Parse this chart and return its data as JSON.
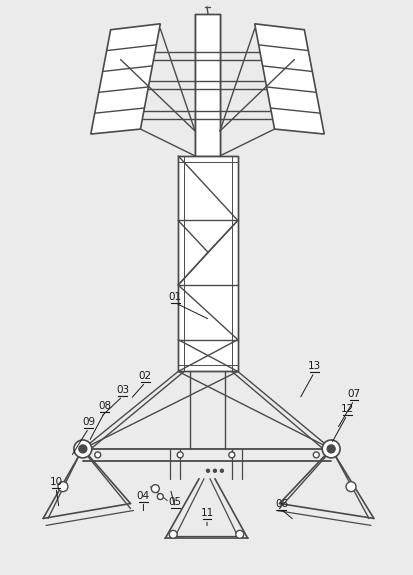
{
  "bg": "#ebebeb",
  "lc": "#4a4a4a",
  "lw": 1.0,
  "white": "#ffffff"
}
